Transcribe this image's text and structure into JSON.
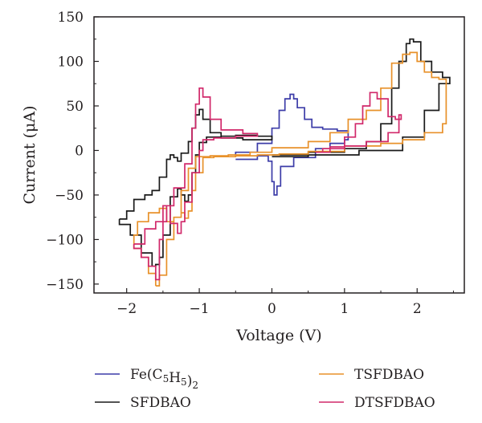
{
  "chart_data": {
    "type": "line",
    "title": "",
    "xlabel": "Voltage (V)",
    "ylabel": "Current (μA)",
    "xlim": [
      -2.45,
      2.65
    ],
    "ylim": [
      -160,
      150
    ],
    "xticks": [
      -2,
      -1,
      0,
      1,
      2
    ],
    "xtick_labels": [
      "−2",
      "−1",
      "0",
      "1",
      "2"
    ],
    "yticks": [
      -150,
      -100,
      -50,
      0,
      50,
      100,
      150
    ],
    "ytick_labels": [
      "−150",
      "−100",
      "−50",
      "0",
      "50",
      "100",
      "150"
    ],
    "grid": false,
    "legend_position": "bottom",
    "series": [
      {
        "name": "Fe(C5H5)2",
        "color": "#3c3ca8",
        "segments": [
          [
            [
              -0.5,
              -10
            ],
            [
              -0.2,
              -6
            ],
            [
              -0.05,
              -12
            ],
            [
              0.0,
              -35
            ],
            [
              0.03,
              -50
            ],
            [
              0.07,
              -40
            ],
            [
              0.12,
              -18
            ],
            [
              0.3,
              -8
            ],
            [
              0.6,
              2
            ],
            [
              0.8,
              8
            ],
            [
              1.0,
              12
            ],
            [
              1.05,
              22
            ],
            [
              0.9,
              24
            ],
            [
              0.7,
              26
            ],
            [
              0.55,
              35
            ],
            [
              0.45,
              48
            ],
            [
              0.35,
              58
            ],
            [
              0.3,
              63
            ],
            [
              0.25,
              58
            ],
            [
              0.18,
              45
            ],
            [
              0.1,
              25
            ],
            [
              0.0,
              8
            ],
            [
              -0.2,
              -2
            ],
            [
              -0.5,
              -7
            ]
          ]
        ]
      },
      {
        "name": "SFDBAO",
        "color": "#1a1a1a",
        "segments": [
          [
            [
              -2.1,
              -77
            ],
            [
              -2.0,
              -68
            ],
            [
              -1.9,
              -55
            ],
            [
              -1.75,
              -50
            ],
            [
              -1.65,
              -45
            ],
            [
              -1.55,
              -30
            ],
            [
              -1.45,
              -10
            ],
            [
              -1.4,
              -5
            ],
            [
              -1.35,
              -8
            ],
            [
              -1.3,
              -12
            ],
            [
              -1.25,
              -3
            ],
            [
              -1.15,
              10
            ],
            [
              -1.1,
              25
            ],
            [
              -1.05,
              40
            ],
            [
              -1.0,
              46
            ],
            [
              -0.95,
              35
            ],
            [
              -0.85,
              20
            ],
            [
              -0.7,
              14
            ],
            [
              -0.4,
              12
            ],
            [
              -0.1,
              12
            ],
            [
              0.0,
              13
            ],
            [
              0.0,
              16
            ],
            [
              -0.2,
              17
            ],
            [
              -0.5,
              16
            ],
            [
              -0.7,
              15
            ],
            [
              -0.9,
              9
            ],
            [
              -1.0,
              -5
            ],
            [
              -1.05,
              -25
            ],
            [
              -1.1,
              -50
            ],
            [
              -1.15,
              -57
            ],
            [
              -1.2,
              -50
            ],
            [
              -1.25,
              -43
            ],
            [
              -1.3,
              -52
            ],
            [
              -1.4,
              -95
            ],
            [
              -1.5,
              -120
            ],
            [
              -1.55,
              -128
            ],
            [
              -1.6,
              -130
            ],
            [
              -1.65,
              -115
            ],
            [
              -1.8,
              -95
            ],
            [
              -1.95,
              -83
            ],
            [
              -2.1,
              -77
            ]
          ],
          [
            [
              0.0,
              -5
            ],
            [
              0.5,
              -2
            ],
            [
              1.0,
              2
            ],
            [
              1.3,
              10
            ],
            [
              1.5,
              30
            ],
            [
              1.65,
              70
            ],
            [
              1.75,
              100
            ],
            [
              1.85,
              120
            ],
            [
              1.9,
              125
            ],
            [
              1.95,
              122
            ],
            [
              2.05,
              100
            ],
            [
              2.2,
              88
            ],
            [
              2.35,
              82
            ],
            [
              2.43,
              82
            ],
            [
              2.45,
              75
            ],
            [
              2.3,
              45
            ],
            [
              2.1,
              15
            ],
            [
              1.8,
              0
            ],
            [
              1.2,
              -5
            ],
            [
              0.5,
              -7
            ],
            [
              0.0,
              -7
            ]
          ]
        ]
      },
      {
        "name": "TSFDBAO",
        "color": "#e8912a",
        "segments": [
          [
            [
              -1.6,
              -152
            ],
            [
              -1.55,
              -140
            ],
            [
              -1.45,
              -100
            ],
            [
              -1.35,
              -75
            ],
            [
              -1.25,
              -70
            ],
            [
              -1.2,
              -76
            ],
            [
              -1.15,
              -68
            ],
            [
              -1.1,
              -45
            ],
            [
              -1.05,
              -25
            ],
            [
              -0.95,
              -8
            ],
            [
              -0.8,
              -7
            ],
            [
              -0.5,
              -6
            ],
            [
              -0.2,
              -5
            ],
            [
              0.1,
              -4
            ],
            [
              0.5,
              -1
            ],
            [
              1.0,
              5
            ],
            [
              1.5,
              8
            ],
            [
              1.8,
              12
            ],
            [
              2.1,
              20
            ],
            [
              2.35,
              30
            ],
            [
              2.4,
              55
            ],
            [
              2.4,
              80
            ],
            [
              2.3,
              82
            ],
            [
              2.2,
              88
            ],
            [
              2.1,
              100
            ],
            [
              2.0,
              110
            ],
            [
              1.9,
              108
            ],
            [
              1.8,
              98
            ],
            [
              1.65,
              70
            ],
            [
              1.5,
              45
            ],
            [
              1.3,
              35
            ],
            [
              1.05,
              20
            ],
            [
              0.8,
              10
            ],
            [
              0.5,
              3
            ],
            [
              0.0,
              -2
            ],
            [
              -0.3,
              -5
            ],
            [
              -0.6,
              -6
            ],
            [
              -0.85,
              -7
            ],
            [
              -1.05,
              -20
            ],
            [
              -1.15,
              -45
            ],
            [
              -1.25,
              -75
            ],
            [
              -1.35,
              -80
            ],
            [
              -1.45,
              -65
            ],
            [
              -1.55,
              -70
            ],
            [
              -1.7,
              -80
            ],
            [
              -1.85,
              -95
            ],
            [
              -1.9,
              -110
            ],
            [
              -1.8,
              -120
            ],
            [
              -1.7,
              -138
            ],
            [
              -1.6,
              -152
            ]
          ]
        ]
      },
      {
        "name": "DTSFDBAO",
        "color": "#d1286a",
        "segments": [
          [
            [
              -1.9,
              -105
            ],
            [
              -1.75,
              -88
            ],
            [
              -1.6,
              -80
            ],
            [
              -1.45,
              -62
            ],
            [
              -1.35,
              -42
            ],
            [
              -1.2,
              -15
            ],
            [
              -1.1,
              25
            ],
            [
              -1.05,
              52
            ],
            [
              -1.0,
              70
            ],
            [
              -0.95,
              60
            ],
            [
              -0.85,
              35
            ],
            [
              -0.7,
              23
            ],
            [
              -0.4,
              19
            ],
            [
              -0.2,
              18
            ],
            [
              -0.2,
              16
            ],
            [
              -0.5,
              14
            ],
            [
              -0.8,
              12
            ],
            [
              -0.95,
              0
            ],
            [
              -1.0,
              -25
            ],
            [
              -1.1,
              -58
            ],
            [
              -1.2,
              -80
            ],
            [
              -1.25,
              -93
            ],
            [
              -1.3,
              -82
            ],
            [
              -1.4,
              -62
            ],
            [
              -1.5,
              -100
            ],
            [
              -1.55,
              -145
            ],
            [
              -1.6,
              -130
            ],
            [
              -1.7,
              -120
            ],
            [
              -1.8,
              -110
            ],
            [
              -1.9,
              -105
            ]
          ],
          [
            [
              0.6,
              -2
            ],
            [
              0.8,
              4
            ],
            [
              1.0,
              15
            ],
            [
              1.15,
              30
            ],
            [
              1.25,
              50
            ],
            [
              1.35,
              65
            ],
            [
              1.45,
              58
            ],
            [
              1.6,
              38
            ],
            [
              1.7,
              35
            ],
            [
              1.78,
              40
            ],
            [
              1.75,
              20
            ],
            [
              1.6,
              10
            ],
            [
              1.3,
              5
            ],
            [
              1.0,
              2
            ],
            [
              0.7,
              -1
            ]
          ]
        ]
      }
    ],
    "legend": {
      "entries": [
        {
          "label": "Fe(C5H5)2",
          "color": "#3c3ca8"
        },
        {
          "label": "SFDBAO",
          "color": "#1a1a1a"
        },
        {
          "label": "TSFDBAO",
          "color": "#e8912a"
        },
        {
          "label": "DTSFDBAO",
          "color": "#d1286a"
        }
      ]
    }
  }
}
